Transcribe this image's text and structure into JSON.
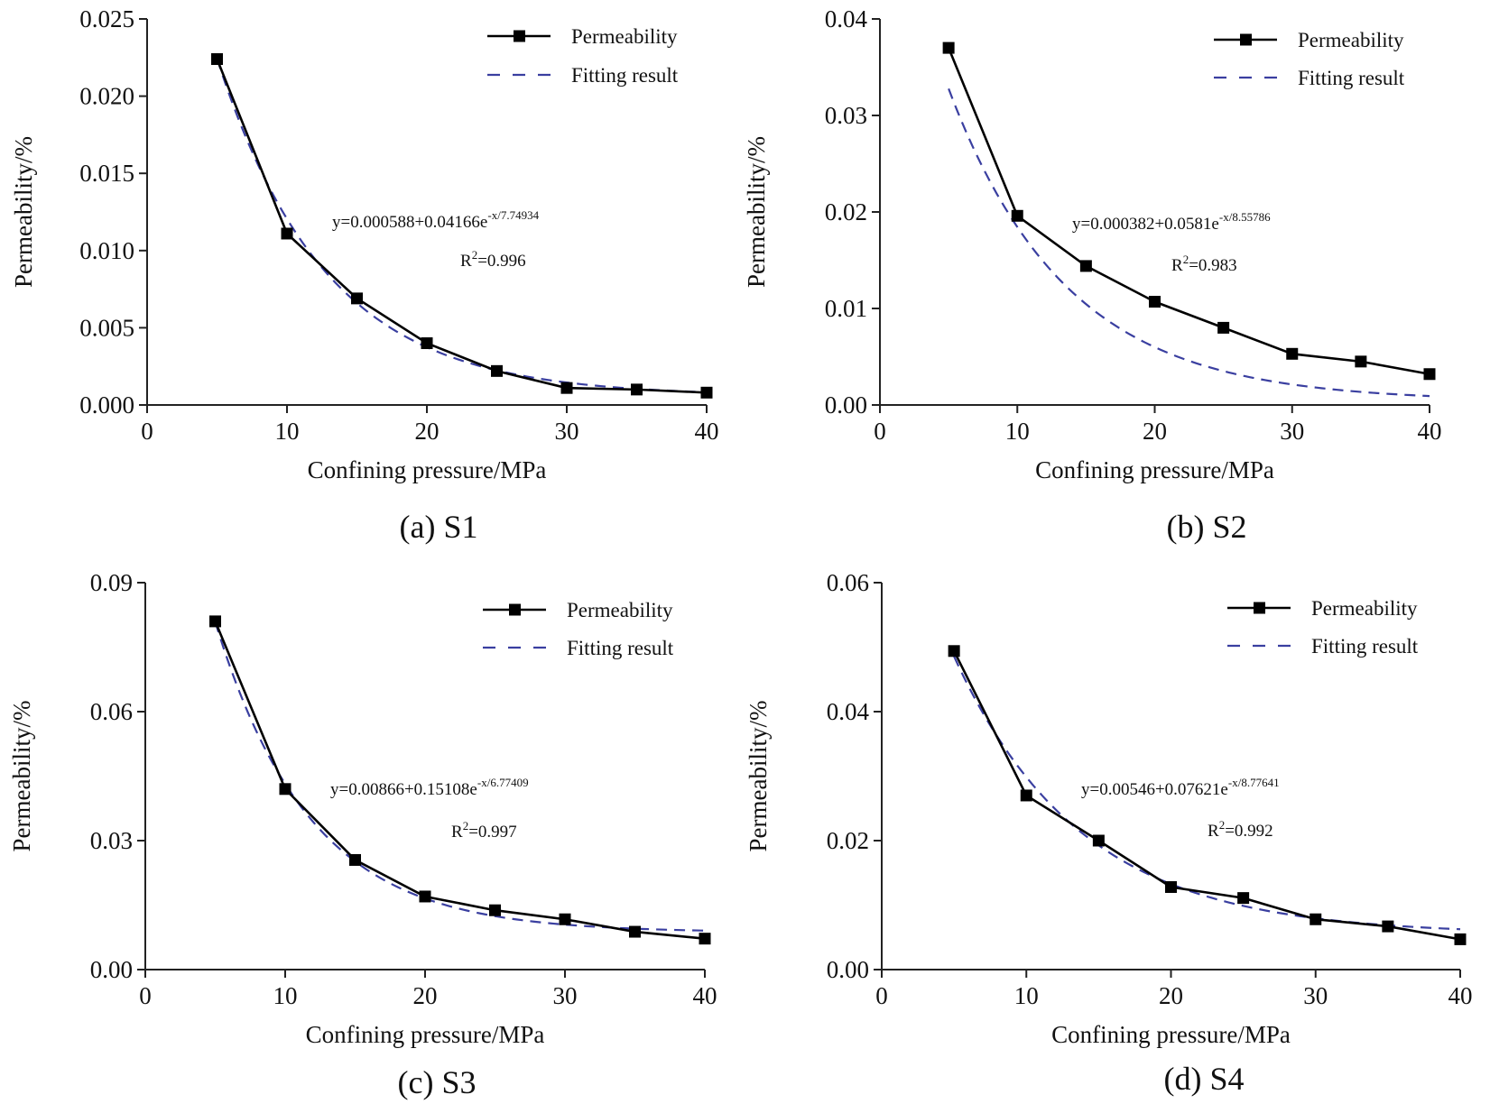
{
  "figure": {
    "fit_color": "#3a3fa0",
    "data_color": "#000000"
  },
  "chart_data": [
    {
      "id": "S1",
      "type": "line",
      "caption": "(a) S1",
      "xlabel": "Confining pressure/MPa",
      "ylabel": "Permeability/%",
      "xlim": [
        0,
        40
      ],
      "ylim": [
        0,
        0.025
      ],
      "xticks": [
        0,
        10,
        20,
        30,
        40
      ],
      "xtick_labels": [
        "0",
        "10",
        "20",
        "30",
        "40"
      ],
      "yticks": [
        0,
        0.005,
        0.01,
        0.015,
        0.02,
        0.025
      ],
      "ytick_labels": [
        "0.000",
        "0.005",
        "0.010",
        "0.015",
        "0.020",
        "0.025"
      ],
      "legend": [
        "Permeability",
        "Fitting result"
      ],
      "equation_main": "y=0.000588+0.04166e",
      "equation_exp": "-x/7.74934",
      "r2_prefix": "R",
      "r2_sup": "2",
      "r2_value": "=0.996",
      "fit": {
        "y0": 0.000588,
        "A": 0.04166,
        "t": 7.74934
      },
      "series": [
        {
          "name": "Permeability",
          "x": [
            5,
            10,
            15,
            20,
            25,
            30,
            35,
            40
          ],
          "y": [
            0.0224,
            0.0111,
            0.0069,
            0.004,
            0.0022,
            0.0011,
            0.001,
            0.0008
          ]
        }
      ]
    },
    {
      "id": "S2",
      "type": "line",
      "caption": "(b) S2",
      "xlabel": "Confining pressure/MPa",
      "ylabel": "Permeability/%",
      "xlim": [
        0,
        40
      ],
      "ylim": [
        0,
        0.04
      ],
      "xticks": [
        0,
        10,
        20,
        30,
        40
      ],
      "xtick_labels": [
        "0",
        "10",
        "20",
        "30",
        "40"
      ],
      "yticks": [
        0,
        0.01,
        0.02,
        0.03,
        0.04
      ],
      "ytick_labels": [
        "0.00",
        "0.01",
        "0.02",
        "0.03",
        "0.04"
      ],
      "legend": [
        "Permeability",
        "Fitting result"
      ],
      "equation_main": "y=0.000382+0.0581e",
      "equation_exp": "-x/8.55786",
      "r2_prefix": "R",
      "r2_sup": "2",
      "r2_value": "=0.983",
      "fit": {
        "y0": 0.000382,
        "A": 0.0581,
        "t": 8.55786
      },
      "series": [
        {
          "name": "Permeability",
          "x": [
            5,
            10,
            15,
            20,
            25,
            30,
            35,
            40
          ],
          "y": [
            0.037,
            0.0196,
            0.0144,
            0.0107,
            0.008,
            0.0053,
            0.0045,
            0.0032
          ]
        }
      ]
    },
    {
      "id": "S3",
      "type": "line",
      "caption": "(c) S3",
      "xlabel": "Confining pressure/MPa",
      "ylabel": "Permeability/%",
      "xlim": [
        0,
        40
      ],
      "ylim": [
        0,
        0.09
      ],
      "xticks": [
        0,
        10,
        20,
        30,
        40
      ],
      "xtick_labels": [
        "0",
        "10",
        "20",
        "30",
        "40"
      ],
      "yticks": [
        0,
        0.03,
        0.06,
        0.09
      ],
      "ytick_labels": [
        "0.00",
        "0.03",
        "0.06",
        "0.09"
      ],
      "legend": [
        "Permeability",
        "Fitting result"
      ],
      "equation_main": "y=0.00866+0.15108e",
      "equation_exp": "-x/6.77409",
      "r2_prefix": "R",
      "r2_sup": "2",
      "r2_value": "=0.997",
      "fit": {
        "y0": 0.00866,
        "A": 0.15108,
        "t": 6.77409
      },
      "series": [
        {
          "name": "Permeability",
          "x": [
            5,
            10,
            15,
            20,
            25,
            30,
            35,
            40
          ],
          "y": [
            0.081,
            0.042,
            0.0255,
            0.017,
            0.0138,
            0.0117,
            0.0088,
            0.0072
          ]
        }
      ]
    },
    {
      "id": "S4",
      "type": "line",
      "caption": "(d) S4",
      "xlabel": "Confining pressure/MPa",
      "ylabel": "Permeability/%",
      "xlim": [
        0,
        40
      ],
      "ylim": [
        0,
        0.06
      ],
      "xticks": [
        0,
        10,
        20,
        30,
        40
      ],
      "xtick_labels": [
        "0",
        "10",
        "20",
        "30",
        "40"
      ],
      "yticks": [
        0,
        0.02,
        0.04,
        0.06
      ],
      "ytick_labels": [
        "0.00",
        "0.02",
        "0.04",
        "0.06"
      ],
      "legend": [
        "Permeability",
        "Fitting result"
      ],
      "equation_main": "y=0.00546+0.07621e",
      "equation_exp": "-x/8.77641",
      "r2_prefix": "R",
      "r2_sup": "2",
      "r2_value": "=0.992",
      "fit": {
        "y0": 0.00546,
        "A": 0.07621,
        "t": 8.77641
      },
      "series": [
        {
          "name": "Permeability",
          "x": [
            5,
            10,
            15,
            20,
            25,
            30,
            35,
            40
          ],
          "y": [
            0.0494,
            0.027,
            0.02,
            0.0128,
            0.0111,
            0.0078,
            0.0067,
            0.0047
          ]
        }
      ]
    }
  ]
}
